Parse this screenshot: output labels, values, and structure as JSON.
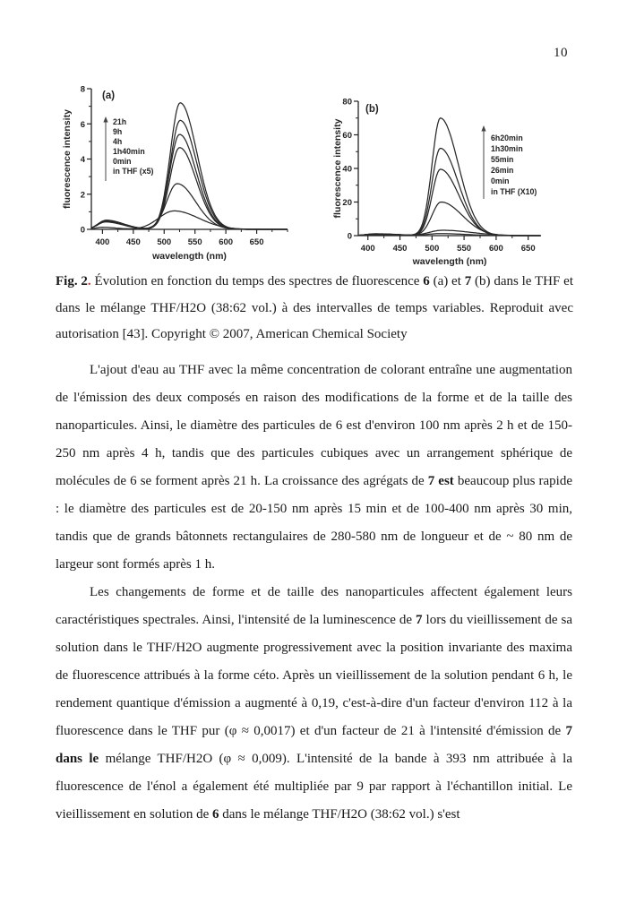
{
  "page": {
    "number": "10"
  },
  "figure": {
    "caption_runs": [
      {
        "text": "Fig. 2",
        "bold": true
      },
      {
        "text": ".",
        "bold": true,
        "color": "#c23b2a"
      },
      {
        "text": " Évolution en fonction du temps des spectres de fluorescence ",
        "bold": false
      },
      {
        "text": "6",
        "bold": true
      },
      {
        "text": " (a) et ",
        "bold": false
      },
      {
        "text": "7",
        "bold": true
      },
      {
        "text": " (b) dans le THF et dans le mélange THF/H2O (38:62 vol.) à des intervalles de temps variables. Reproduit avec autorisation [43]. Copyright © 2007, American Chemical Society",
        "bold": false
      }
    ]
  },
  "chart_data": [
    {
      "type": "line",
      "panel": "(a)",
      "xlabel": "wavelength (nm)",
      "ylabel": "fluorescence intensity",
      "xlim": [
        382,
        700
      ],
      "ylim": [
        0,
        8
      ],
      "xticks": [
        400,
        450,
        500,
        550,
        600,
        650
      ],
      "yticks": [
        0,
        2,
        4,
        6,
        8
      ],
      "x_minor_step": 25,
      "grid": false,
      "legend": {
        "position": "upper-left-inside",
        "arrow": "up",
        "lines": [
          "21h",
          "9h",
          "4h",
          "1h40min",
          "0min",
          "in THF (x5)"
        ]
      },
      "series": [
        {
          "label": "21h",
          "components": [
            {
              "x": 406,
              "y": 0.52,
              "wl": 13,
              "wr": 28
            },
            {
              "x": 526,
              "y": 7.2,
              "wl": 16,
              "wr": 27
            }
          ]
        },
        {
          "label": "9h",
          "components": [
            {
              "x": 406,
              "y": 0.5,
              "wl": 13,
              "wr": 28
            },
            {
              "x": 526,
              "y": 6.2,
              "wl": 16,
              "wr": 27
            }
          ]
        },
        {
          "label": "4h",
          "components": [
            {
              "x": 406,
              "y": 0.48,
              "wl": 13,
              "wr": 28
            },
            {
              "x": 525,
              "y": 5.4,
              "wl": 16,
              "wr": 27
            }
          ]
        },
        {
          "label": "1h40min",
          "components": [
            {
              "x": 406,
              "y": 0.45,
              "wl": 13,
              "wr": 28
            },
            {
              "x": 525,
              "y": 4.65,
              "wl": 16,
              "wr": 27
            }
          ]
        },
        {
          "label": "0min",
          "components": [
            {
              "x": 405,
              "y": 0.42,
              "wl": 13,
              "wr": 28
            },
            {
              "x": 521,
              "y": 2.6,
              "wl": 17,
              "wr": 30
            }
          ]
        },
        {
          "label": "in THF (x5)",
          "components": [
            {
              "x": 400,
              "y": 0.12,
              "wl": 11,
              "wr": 22
            },
            {
              "x": 516,
              "y": 1.05,
              "wl": 25,
              "wr": 40
            }
          ]
        }
      ]
    },
    {
      "type": "line",
      "panel": "(b)",
      "xlabel": "wavelength (nm)",
      "ylabel": "fluorescence intensity",
      "xlim": [
        385,
        670
      ],
      "ylim": [
        0,
        80
      ],
      "xticks": [
        400,
        450,
        500,
        550,
        600,
        650
      ],
      "yticks": [
        0,
        20,
        40,
        60,
        80
      ],
      "x_minor_step": 25,
      "grid": false,
      "legend": {
        "position": "upper-right-inside",
        "arrow": "up",
        "lines": [
          "6h20min",
          "1h30min",
          "55min",
          "26min",
          "0min",
          "in THF (X10)"
        ]
      },
      "series": [
        {
          "label": "6h20min",
          "components": [
            {
              "x": 412,
              "y": 1.1,
              "wl": 15,
              "wr": 35
            },
            {
              "x": 513,
              "y": 70,
              "wl": 13,
              "wr": 28
            }
          ]
        },
        {
          "label": "1h30min",
          "components": [
            {
              "x": 412,
              "y": 1.0,
              "wl": 15,
              "wr": 35
            },
            {
              "x": 513,
              "y": 52,
              "wl": 13,
              "wr": 28
            }
          ]
        },
        {
          "label": "55min",
          "components": [
            {
              "x": 412,
              "y": 0.95,
              "wl": 15,
              "wr": 35
            },
            {
              "x": 513,
              "y": 39.5,
              "wl": 13,
              "wr": 29
            }
          ]
        },
        {
          "label": "26min",
          "components": [
            {
              "x": 411,
              "y": 0.9,
              "wl": 15,
              "wr": 35
            },
            {
              "x": 514,
              "y": 20,
              "wl": 14,
              "wr": 33
            }
          ]
        },
        {
          "label": "0min",
          "components": [
            {
              "x": 410,
              "y": 0.8,
              "wl": 14,
              "wr": 32
            },
            {
              "x": 516,
              "y": 3.2,
              "wl": 20,
              "wr": 45
            }
          ]
        },
        {
          "label": "in THF (X10)",
          "components": [
            {
              "x": 402,
              "y": 0.5,
              "wl": 12,
              "wr": 25
            },
            {
              "x": 512,
              "y": 1.2,
              "wl": 20,
              "wr": 40
            }
          ]
        }
      ]
    }
  ],
  "paragraphs": [
    {
      "runs": [
        {
          "text": "L'ajout d'eau au THF avec la même concentration de colorant entraîne une augmentation de l'émission des deux composés en raison des modifications de la forme et de la taille des nanoparticules. Ainsi, le diamètre des particules de 6 est d'environ 100 nm après 2 h et de 150-250 nm après 4 h, tandis que des particules cubiques avec un arrangement sphérique de molécules de 6 se forment après 21 h. La croissance des agrégats de ",
          "bold": false
        },
        {
          "text": "7 est",
          "bold": true
        },
        {
          "text": " beaucoup plus rapide : le diamètre des particules est de 20-150 nm après 15 min et de 100-400 nm après 30 min, tandis que de grands bâtonnets rectangulaires de 280-580 nm de longueur et de ~ 80 nm de largeur sont formés après 1 h.",
          "bold": false
        }
      ]
    },
    {
      "runs": [
        {
          "text": "Les changements de forme et de taille des nanoparticules affectent également leurs caractéristiques spectrales. Ainsi, l'intensité de la luminescence de ",
          "bold": false
        },
        {
          "text": "7",
          "bold": true
        },
        {
          "text": " lors du vieillissement de sa solution dans le THF/H2O augmente progressivement avec la position invariante des maxima de fluorescence attribués à la forme céto. Après un vieillissement de la solution pendant 6 h, le rendement quantique d'émission a augmenté à 0,19, c'est-à-dire d'un facteur d'environ 112 à la fluorescence dans le THF pur (φ ≈ 0,0017) et d'un facteur de 21 à l'intensité d'émission de ",
          "bold": false
        },
        {
          "text": "7 dans le",
          "bold": true
        },
        {
          "text": " mélange THF/H2O (φ ≈ 0,009). L'intensité de la bande à 393 nm attribuée à la fluorescence de l'énol a également été multipliée par 9 par rapport à l'échantillon initial. Le vieillissement en solution de ",
          "bold": false
        },
        {
          "text": "6",
          "bold": true
        },
        {
          "text": " dans le mélange THF/H2O (38:62 vol.) s'est",
          "bold": false
        }
      ]
    }
  ]
}
